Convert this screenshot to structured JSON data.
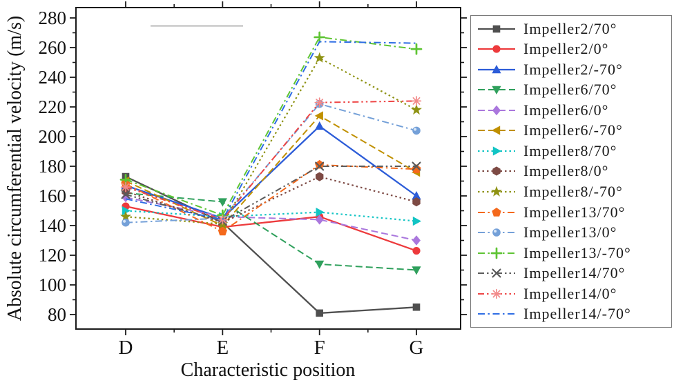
{
  "chart_data": {
    "type": "line",
    "title": "",
    "xlabel": "Characteristic position",
    "ylabel": "Absolute circumferential velocity (m/s)",
    "categories": [
      "D",
      "E",
      "F",
      "G"
    ],
    "y_ticks": [
      280,
      260,
      240,
      220,
      200,
      180,
      160,
      140,
      120,
      100,
      80
    ],
    "ylim": [
      70,
      287
    ],
    "grid": false,
    "legend_position": "right-outside",
    "axis_color": "#1a1a1a",
    "legend_border_color": "#7a7a7a",
    "series": [
      {
        "name": "Impeller2/70°",
        "color": "#4f4f4f",
        "line_style": "solid",
        "marker": "square",
        "values": [
          173,
          142,
          81,
          85
        ]
      },
      {
        "name": "Impeller2/0°",
        "color": "#ed3a3c",
        "line_style": "solid",
        "marker": "circle",
        "values": [
          153,
          139,
          146,
          123
        ]
      },
      {
        "name": "Impeller2/-70°",
        "color": "#2c5cd8",
        "line_style": "solid",
        "marker": "triangle-up",
        "values": [
          167,
          145,
          207,
          160
        ]
      },
      {
        "name": "Impeller6/70°",
        "color": "#2fa05c",
        "line_style": "dashed",
        "marker": "triangle-down",
        "values": [
          162,
          156,
          114,
          110
        ]
      },
      {
        "name": "Impeller6/0°",
        "color": "#aa77dd",
        "line_style": "dashed",
        "marker": "diamond",
        "values": [
          159,
          146,
          144,
          130
        ]
      },
      {
        "name": "Impeller6/-70°",
        "color": "#c09000",
        "line_style": "dashed",
        "marker": "triangle-left",
        "values": [
          170,
          140,
          214,
          176
        ]
      },
      {
        "name": "Impeller8/70°",
        "color": "#12c4c4",
        "line_style": "dotted",
        "marker": "triangle-right",
        "values": [
          150,
          146,
          149,
          143
        ]
      },
      {
        "name": "Impeller8/0°",
        "color": "#7d4a44",
        "line_style": "dotted",
        "marker": "hexagon",
        "values": [
          163,
          142,
          173,
          156
        ]
      },
      {
        "name": "Impeller8/-70°",
        "color": "#8e9212",
        "line_style": "dotted",
        "marker": "star",
        "values": [
          146,
          141,
          253,
          218
        ]
      },
      {
        "name": "Impeller13/70°",
        "color": "#f4691c",
        "line_style": "dashdot",
        "marker": "pentagon",
        "values": [
          168,
          136,
          181,
          178
        ]
      },
      {
        "name": "Impeller13/0°",
        "color": "#74a0d8",
        "line_style": "dashdot",
        "marker": "sphere",
        "values": [
          142,
          145,
          222,
          204
        ]
      },
      {
        "name": "Impeller13/-70°",
        "color": "#5ec433",
        "line_style": "dashdot",
        "marker": "plus",
        "values": [
          171,
          147,
          267,
          259
        ]
      },
      {
        "name": "Impeller14/70°",
        "color": "#5a5a5a",
        "line_style": "dashdotdot",
        "marker": "x",
        "values": [
          161,
          143,
          180,
          180
        ]
      },
      {
        "name": "Impeller14/0°",
        "color": "#ee4545",
        "line_style": "dashdotdot",
        "marker": "asterisk",
        "marker_color": "#f28b8b",
        "values": [
          166,
          144,
          223,
          224
        ]
      },
      {
        "name": "Impeller14/-70°",
        "color": "#2e6de4",
        "line_style": "dashdot",
        "marker": "none",
        "values": [
          158,
          144,
          264,
          263
        ]
      }
    ]
  }
}
